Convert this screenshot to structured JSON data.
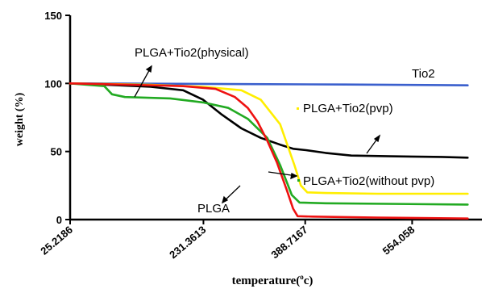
{
  "chart_data": {
    "type": "line",
    "title": "",
    "xlabel": "temperature(",
    "xlabel_sup": "o",
    "xlabel_suffix": "c)",
    "ylabel": "weight (%)",
    "xlim": [
      25.2186,
      662.0
    ],
    "ylim": [
      0,
      150
    ],
    "xticks": [
      25.2186,
      231.3613,
      388.7167,
      554.058
    ],
    "xtick_labels": [
      "25.2186",
      "231.3613",
      "388.7167",
      "554.058"
    ],
    "yticks": [
      0,
      50,
      100,
      150
    ],
    "ytick_labels": [
      "0",
      "50",
      "100",
      "150"
    ],
    "series": [
      {
        "name": "Tio2",
        "color": "#3a5fcd",
        "points": [
          [
            25.2186,
            100
          ],
          [
            150,
            99.8
          ],
          [
            300,
            99.5
          ],
          [
            450,
            99.2
          ],
          [
            600,
            98.8
          ],
          [
            640,
            98.6
          ]
        ]
      },
      {
        "name": "PLGA+Tio2(physical)",
        "color": "#000000",
        "points": [
          [
            25.2186,
            100
          ],
          [
            80,
            99
          ],
          [
            150,
            97.5
          ],
          [
            200,
            95
          ],
          [
            231,
            88
          ],
          [
            260,
            77
          ],
          [
            290,
            67
          ],
          [
            320,
            60
          ],
          [
            350,
            55
          ],
          [
            370,
            52
          ],
          [
            390,
            51
          ],
          [
            420,
            49
          ],
          [
            460,
            47
          ],
          [
            520,
            46.5
          ],
          [
            600,
            46
          ],
          [
            640,
            45.5
          ]
        ]
      },
      {
        "name": "PLGA+Tio2(pvp)",
        "color": "#ffee00",
        "points": [
          [
            25.2186,
            100
          ],
          [
            150,
            99
          ],
          [
            231,
            97.5
          ],
          [
            290,
            95
          ],
          [
            320,
            88
          ],
          [
            350,
            70
          ],
          [
            372,
            40
          ],
          [
            382,
            25
          ],
          [
            392,
            20
          ],
          [
            420,
            19.5
          ],
          [
            500,
            19
          ],
          [
            640,
            19
          ]
        ]
      },
      {
        "name": "PLGA+Tio2(without pvp)",
        "color": "#22aa22",
        "points": [
          [
            25.2186,
            100
          ],
          [
            78,
            98
          ],
          [
            90,
            92
          ],
          [
            110,
            90
          ],
          [
            180,
            89
          ],
          [
            231,
            86
          ],
          [
            270,
            82
          ],
          [
            300,
            74
          ],
          [
            330,
            60
          ],
          [
            350,
            40
          ],
          [
            368,
            18
          ],
          [
            380,
            12.5
          ],
          [
            420,
            12
          ],
          [
            640,
            11
          ]
        ]
      },
      {
        "name": "PLGA",
        "color": "#ee1111",
        "points": [
          [
            25.2186,
            100
          ],
          [
            120,
            99
          ],
          [
            200,
            98
          ],
          [
            250,
            96
          ],
          [
            280,
            90
          ],
          [
            300,
            82
          ],
          [
            315,
            72
          ],
          [
            330,
            58
          ],
          [
            345,
            42
          ],
          [
            360,
            22
          ],
          [
            370,
            8
          ],
          [
            377,
            2.5
          ],
          [
            400,
            2.2
          ],
          [
            500,
            1.5
          ],
          [
            640,
            0.8
          ]
        ]
      }
    ],
    "annotations": [
      {
        "text": "PLGA+Tio2(physical)"
      },
      {
        "text": "Tio2"
      },
      {
        "text": "PLGA+Tio2(pvp)"
      },
      {
        "text": "PLGA+Tio2(without pvp)"
      },
      {
        "text": "PLGA"
      }
    ]
  }
}
